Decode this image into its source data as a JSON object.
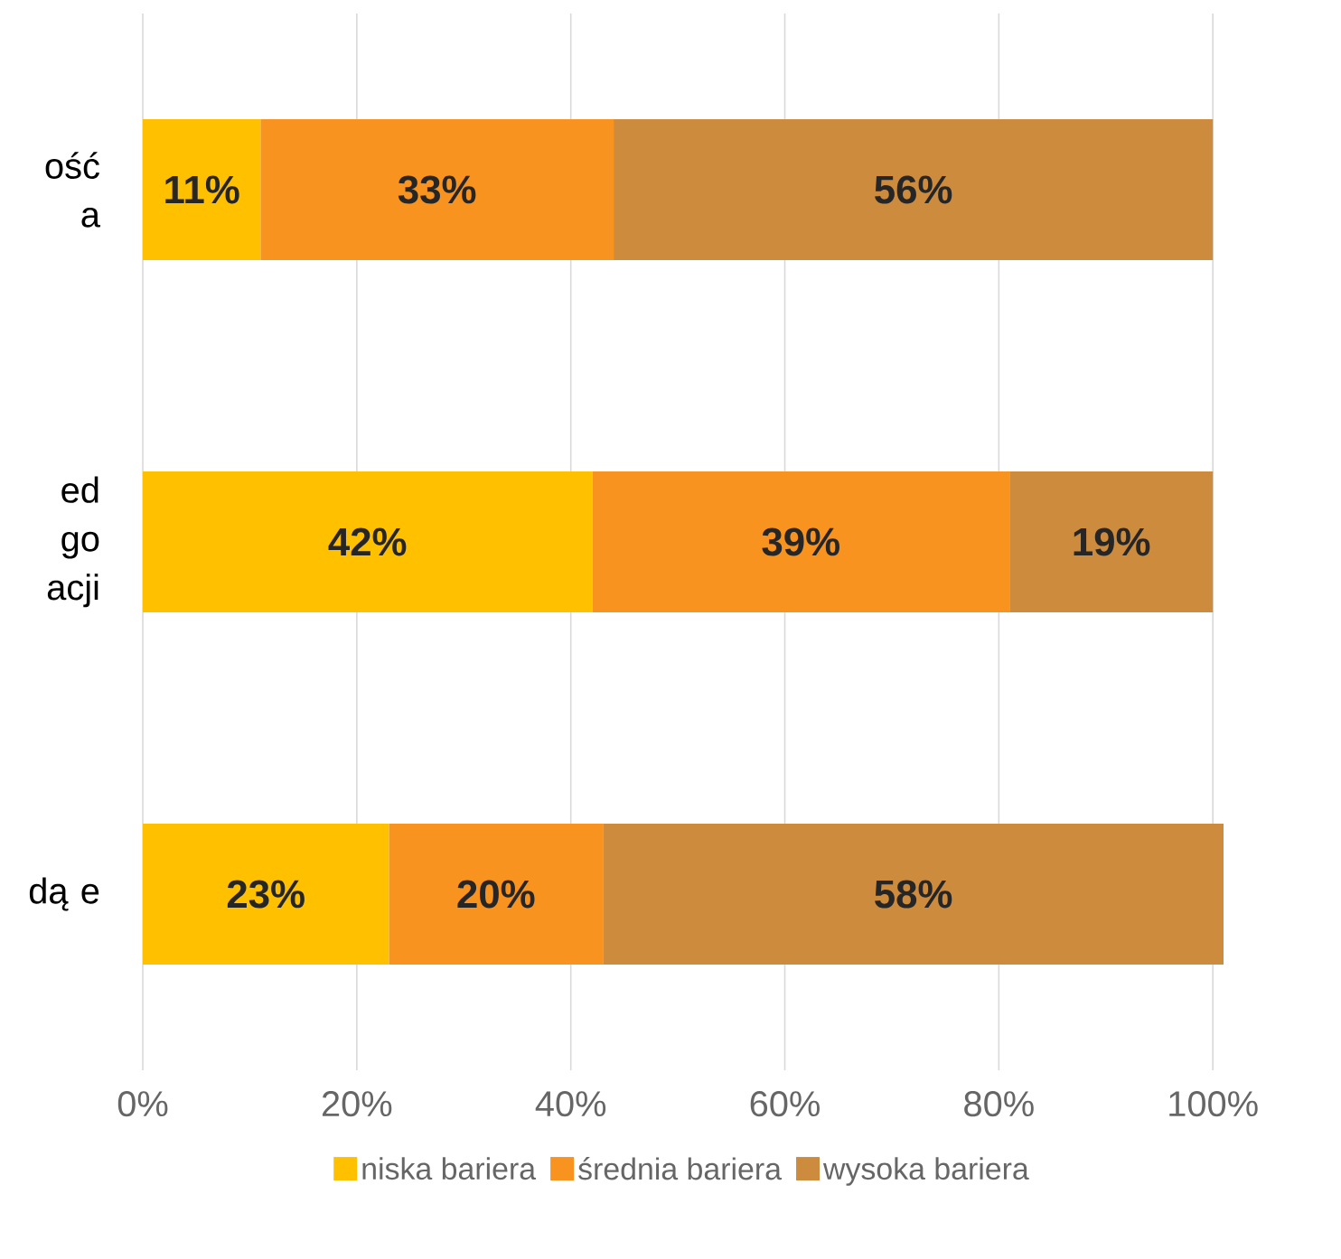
{
  "chart_data": {
    "type": "bar",
    "orientation": "horizontal",
    "stacked": true,
    "categories": [
      "ość a",
      "ed go acji",
      "dą e"
    ],
    "series": [
      {
        "name": "niska  bariera",
        "color": "#ffc000",
        "values": [
          11,
          42,
          23
        ],
        "value_labels": [
          "11%",
          "42%",
          "23%"
        ]
      },
      {
        "name": "średnia bariera",
        "color": "#f7931e",
        "values": [
          33,
          39,
          20
        ],
        "value_labels": [
          "33%",
          "39%",
          "20%"
        ]
      },
      {
        "name": "wysoka bariera",
        "color": "#cd8b3e",
        "values": [
          56,
          19,
          58
        ],
        "value_labels": [
          "56%",
          "19%",
          "58%"
        ]
      }
    ],
    "xlim": [
      0,
      101
    ],
    "xticks": [
      {
        "value": 0,
        "label": "0%"
      },
      {
        "value": 20,
        "label": "20%"
      },
      {
        "value": 40,
        "label": "40%"
      },
      {
        "value": 60,
        "label": "60%"
      },
      {
        "value": 80,
        "label": "80%"
      },
      {
        "value": 100,
        "label": "100%"
      }
    ],
    "grid": "x",
    "legend": "bottom"
  }
}
